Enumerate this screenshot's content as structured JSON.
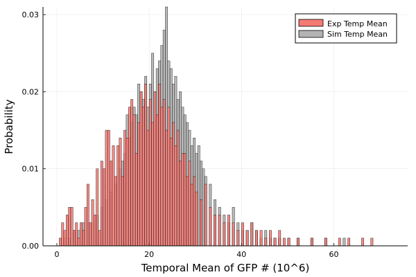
{
  "chart_data": {
    "type": "bar",
    "subtype": "overlaid-histogram",
    "title": "",
    "xlabel": "Temporal Mean of GFP # (10^6)",
    "ylabel": "Probability",
    "xlim": [
      -3,
      76
    ],
    "ylim": [
      0,
      0.031
    ],
    "xticks": [
      0,
      20,
      40,
      60
    ],
    "xtick_labels": [
      "0",
      "20",
      "40",
      "60"
    ],
    "yticks": [
      0,
      0.01,
      0.02,
      0.03
    ],
    "ytick_labels": [
      "0.00",
      "0.01",
      "0.02",
      "0.03"
    ],
    "grid": true,
    "legend_position": "top-right",
    "bin_width": 0.5,
    "series": [
      {
        "name": "Sim Temp Mean",
        "color": "#b3b3b3",
        "x": [
          1.5,
          2.5,
          3.5,
          4.5,
          5.5,
          6.5,
          7.5,
          8.5,
          9.5,
          10.5,
          11.5,
          12.5,
          13.5,
          14,
          14.5,
          15,
          15.5,
          16,
          16.5,
          17,
          17.5,
          18,
          18.5,
          19,
          19.5,
          20,
          20.5,
          21,
          21.5,
          22,
          22.5,
          23,
          23.5,
          24,
          24.5,
          25,
          25.5,
          26,
          26.5,
          27,
          27.5,
          28,
          28.5,
          29,
          29.5,
          30,
          30.5,
          31,
          31.5,
          32,
          33,
          34,
          35,
          36,
          37,
          38,
          39,
          40,
          41,
          42,
          43,
          44,
          45,
          46,
          47,
          48,
          50,
          52,
          55,
          58,
          62
        ],
        "values": [
          0.001,
          0.001,
          0.002,
          0.002,
          0.003,
          0.003,
          0.003,
          0.004,
          0.005,
          0.006,
          0.007,
          0.008,
          0.01,
          0.011,
          0.012,
          0.017,
          0.014,
          0.016,
          0.018,
          0.017,
          0.021,
          0.02,
          0.019,
          0.022,
          0.018,
          0.021,
          0.025,
          0.02,
          0.023,
          0.024,
          0.026,
          0.028,
          0.031,
          0.024,
          0.023,
          0.021,
          0.022,
          0.019,
          0.02,
          0.018,
          0.017,
          0.016,
          0.015,
          0.013,
          0.014,
          0.012,
          0.013,
          0.011,
          0.01,
          0.009,
          0.008,
          0.006,
          0.005,
          0.004,
          0.003,
          0.005,
          0.003,
          0.002,
          0.002,
          0.003,
          0.002,
          0.001,
          0.002,
          0.001,
          0.001,
          0.001,
          0.001,
          0.001,
          0.001,
          0.001,
          0.001
        ]
      },
      {
        "name": "Exp Temp Mean",
        "color": "#f67a74",
        "x": [
          0.5,
          1,
          1.5,
          2,
          2.5,
          3,
          3.5,
          4,
          4.5,
          5,
          5.5,
          6,
          6.5,
          7,
          7.5,
          8,
          8.5,
          9,
          9.5,
          10,
          10.5,
          11,
          11.5,
          12,
          12.5,
          13,
          13.5,
          14,
          14.5,
          15,
          15.5,
          16,
          16.5,
          17,
          17.5,
          18,
          18.5,
          19,
          19.5,
          20,
          20.5,
          21,
          21.5,
          22,
          22.5,
          23,
          23.5,
          24,
          24.5,
          25,
          25.5,
          26,
          26.5,
          27,
          27.5,
          28,
          28.5,
          29,
          29.5,
          30,
          31,
          32,
          33,
          34,
          35,
          36,
          37,
          38,
          39,
          40,
          41,
          42,
          43,
          44,
          45,
          46,
          47,
          48,
          49,
          50,
          52,
          55,
          58,
          61,
          63,
          66,
          68
        ],
        "values": [
          0.001,
          0.003,
          0.002,
          0.004,
          0.005,
          0.005,
          0.002,
          0.003,
          0.001,
          0.003,
          0.002,
          0.005,
          0.008,
          0.003,
          0.006,
          0.004,
          0.01,
          0.002,
          0.011,
          0.01,
          0.015,
          0.015,
          0.011,
          0.013,
          0.009,
          0.013,
          0.014,
          0.009,
          0.015,
          0.014,
          0.018,
          0.019,
          0.017,
          0.012,
          0.016,
          0.02,
          0.018,
          0.021,
          0.015,
          0.019,
          0.016,
          0.02,
          0.017,
          0.021,
          0.018,
          0.019,
          0.015,
          0.018,
          0.014,
          0.016,
          0.013,
          0.015,
          0.011,
          0.012,
          0.012,
          0.009,
          0.011,
          0.008,
          0.009,
          0.007,
          0.006,
          0.008,
          0.005,
          0.004,
          0.004,
          0.003,
          0.004,
          0.003,
          0.002,
          0.003,
          0.002,
          0.003,
          0.002,
          0.002,
          0.001,
          0.002,
          0.001,
          0.002,
          0.001,
          0.001,
          0.001,
          0.001,
          0.001,
          0.001,
          0.001,
          0.001,
          0.001
        ]
      }
    ],
    "legend_order": [
      "Exp Temp Mean",
      "Sim Temp Mean"
    ]
  }
}
